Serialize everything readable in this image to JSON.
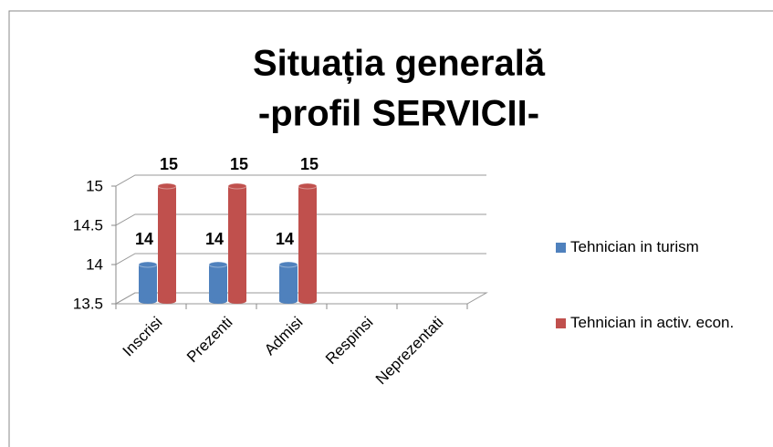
{
  "chart_data": {
    "type": "bar3d",
    "title": [
      "Situația generală",
      "-profil SERVICII-"
    ],
    "categories": [
      "Inscrisi",
      "Prezenti",
      "Admisi",
      "Respinsi",
      "Neprezentati"
    ],
    "series": [
      {
        "name": "Tehnician in turism",
        "color": "#4f81bd",
        "values": [
          14,
          14,
          14,
          null,
          null
        ]
      },
      {
        "name": "Tehnician in activ. econ.",
        "color": "#c0504d",
        "values": [
          15,
          15,
          15,
          null,
          null
        ]
      }
    ],
    "ylim": [
      13.5,
      15
    ],
    "yticks": [
      13.5,
      14,
      14.5,
      15
    ],
    "grid": true,
    "legend": "right"
  }
}
